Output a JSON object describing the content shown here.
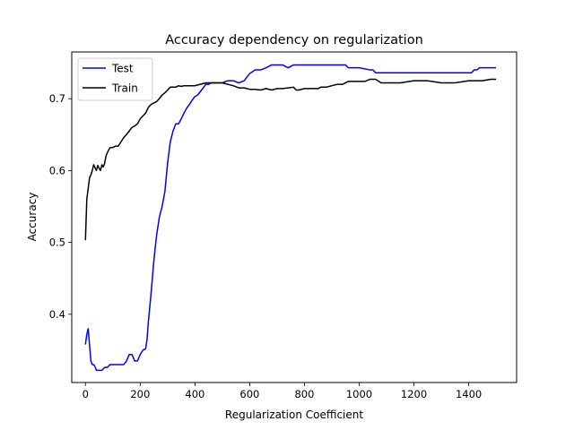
{
  "chart_data": {
    "type": "line",
    "title": "Accuracy dependency on regularization",
    "xlabel": "Regularization Coefficient",
    "ylabel": "Accuracy",
    "xlim": [
      -50,
      1575
    ],
    "ylim": [
      0.305,
      0.765
    ],
    "xticks": [
      0,
      200,
      400,
      600,
      800,
      1000,
      1200,
      1400
    ],
    "yticks": [
      0.4,
      0.5,
      0.6,
      0.7
    ],
    "ytick_labels": [
      "0.4",
      "0.5",
      "0.6",
      "0.7"
    ],
    "grid": false,
    "legend": "top-left",
    "series": [
      {
        "name": "Test",
        "color": "#0000ff",
        "x": [
          0,
          5,
          10,
          15,
          20,
          25,
          30,
          35,
          40,
          50,
          60,
          70,
          80,
          90,
          100,
          110,
          120,
          130,
          140,
          150,
          160,
          170,
          180,
          190,
          200,
          210,
          220,
          225,
          230,
          235,
          240,
          250,
          260,
          270,
          280,
          290,
          300,
          310,
          320,
          330,
          340,
          350,
          360,
          370,
          380,
          390,
          400,
          410,
          420,
          430,
          440,
          450,
          460,
          480,
          500,
          520,
          540,
          560,
          580,
          600,
          620,
          640,
          660,
          680,
          700,
          720,
          740,
          760,
          780,
          800,
          900,
          950,
          960,
          1000,
          1040,
          1050,
          1060,
          1100,
          1200,
          1300,
          1400,
          1410,
          1420,
          1430,
          1440,
          1450,
          1500
        ],
        "y": [
          0.358,
          0.372,
          0.38,
          0.357,
          0.335,
          0.33,
          0.33,
          0.327,
          0.322,
          0.322,
          0.322,
          0.326,
          0.326,
          0.33,
          0.33,
          0.33,
          0.33,
          0.33,
          0.33,
          0.335,
          0.344,
          0.344,
          0.335,
          0.335,
          0.344,
          0.35,
          0.352,
          0.365,
          0.39,
          0.41,
          0.43,
          0.475,
          0.51,
          0.535,
          0.55,
          0.57,
          0.61,
          0.64,
          0.655,
          0.665,
          0.665,
          0.672,
          0.68,
          0.687,
          0.692,
          0.698,
          0.703,
          0.705,
          0.71,
          0.715,
          0.72,
          0.72,
          0.722,
          0.722,
          0.722,
          0.725,
          0.725,
          0.722,
          0.725,
          0.735,
          0.74,
          0.74,
          0.743,
          0.747,
          0.747,
          0.747,
          0.743,
          0.747,
          0.747,
          0.747,
          0.747,
          0.747,
          0.743,
          0.743,
          0.74,
          0.74,
          0.736,
          0.736,
          0.736,
          0.736,
          0.736,
          0.736,
          0.74,
          0.74,
          0.743,
          0.743,
          0.743
        ]
      },
      {
        "name": "Train",
        "color": "#000000",
        "x": [
          0,
          5,
          10,
          15,
          20,
          25,
          30,
          35,
          40,
          45,
          50,
          55,
          60,
          65,
          70,
          75,
          80,
          90,
          100,
          110,
          120,
          130,
          140,
          150,
          160,
          170,
          180,
          190,
          200,
          210,
          220,
          230,
          240,
          250,
          260,
          270,
          280,
          290,
          300,
          310,
          320,
          330,
          340,
          350,
          360,
          370,
          380,
          390,
          400,
          420,
          440,
          460,
          480,
          500,
          520,
          540,
          560,
          580,
          600,
          620,
          640,
          660,
          680,
          700,
          720,
          740,
          760,
          770,
          780,
          800,
          850,
          860,
          880,
          900,
          920,
          940,
          960,
          980,
          1000,
          1020,
          1040,
          1060,
          1080,
          1100,
          1150,
          1200,
          1250,
          1300,
          1350,
          1400,
          1450,
          1480,
          1500
        ],
        "y": [
          0.503,
          0.56,
          0.575,
          0.59,
          0.594,
          0.6,
          0.608,
          0.604,
          0.6,
          0.607,
          0.603,
          0.6,
          0.608,
          0.605,
          0.61,
          0.62,
          0.625,
          0.632,
          0.632,
          0.634,
          0.634,
          0.64,
          0.646,
          0.65,
          0.655,
          0.66,
          0.662,
          0.665,
          0.672,
          0.676,
          0.68,
          0.688,
          0.692,
          0.694,
          0.696,
          0.7,
          0.705,
          0.708,
          0.712,
          0.716,
          0.716,
          0.716,
          0.718,
          0.717,
          0.718,
          0.718,
          0.718,
          0.718,
          0.718,
          0.72,
          0.722,
          0.722,
          0.722,
          0.722,
          0.72,
          0.718,
          0.715,
          0.715,
          0.713,
          0.713,
          0.712,
          0.714,
          0.712,
          0.714,
          0.714,
          0.715,
          0.716,
          0.712,
          0.712,
          0.714,
          0.714,
          0.716,
          0.716,
          0.718,
          0.72,
          0.72,
          0.724,
          0.724,
          0.724,
          0.724,
          0.727,
          0.727,
          0.722,
          0.722,
          0.722,
          0.725,
          0.725,
          0.722,
          0.722,
          0.725,
          0.725,
          0.727,
          0.727
        ]
      }
    ]
  }
}
